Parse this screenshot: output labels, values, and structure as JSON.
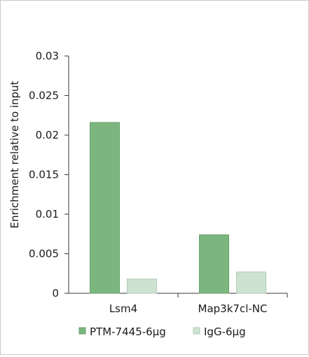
{
  "chart_data": {
    "type": "bar",
    "title": "",
    "xlabel": "",
    "ylabel": "Enrichment relative to input",
    "categories": [
      "Lsm4",
      "Map3k7cl-NC"
    ],
    "series": [
      {
        "name": "PTM-7445-6µg",
        "values": [
          0.0216,
          0.0074
        ],
        "color": "#7cb67f",
        "stroke": "#6aa26d"
      },
      {
        "name": "IgG-6µg",
        "values": [
          0.0018,
          0.0027
        ],
        "color": "#cde2d0",
        "stroke": "#b3cbb6"
      }
    ],
    "ylim": [
      0,
      0.03
    ],
    "yticks": [
      0,
      0.005,
      0.01,
      0.015,
      0.02,
      0.025,
      0.03
    ],
    "ytick_labels": [
      "0",
      "0.005",
      "0.01",
      "0.015",
      "0.02",
      "0.025",
      "0.03"
    ],
    "grid": false,
    "legend_position": "bottom"
  }
}
